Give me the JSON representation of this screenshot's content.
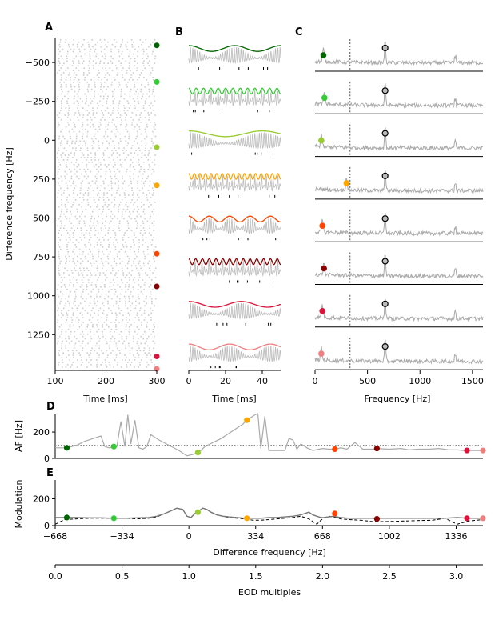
{
  "panel_letters": [
    "A",
    "B",
    "C",
    "D",
    "E"
  ],
  "chart_data": [
    {
      "id": "A",
      "type": "scatter",
      "xlabel": "Time [ms]",
      "ylabel": "Difference frequency [Hz]",
      "xlim": [
        100,
        300
      ],
      "ylim": [
        1480,
        -660
      ],
      "y_inverted": true,
      "xticks": [
        100,
        200,
        300
      ],
      "yticks": [
        -500,
        -250,
        0,
        250,
        500,
        750,
        1000,
        1250
      ],
      "ytick_labels": [
        "−500",
        "−250",
        "0",
        "250",
        "500",
        "750",
        "1000",
        "1250"
      ],
      "raster_color": "#cccccc",
      "markers": [
        {
          "df": -610,
          "color": "#006400"
        },
        {
          "df": -375,
          "color": "#32cd32"
        },
        {
          "df": 45,
          "color": "#9acd32"
        },
        {
          "df": 290,
          "color": "#ffa500"
        },
        {
          "df": 730,
          "color": "#ff4500"
        },
        {
          "df": 940,
          "color": "#8b0000"
        },
        {
          "df": 1390,
          "color": "#dc143c"
        },
        {
          "df": 1470,
          "color": "#f08080"
        }
      ]
    },
    {
      "id": "B",
      "type": "line",
      "xlabel": "Time [ms]",
      "xlim": [
        0,
        50
      ],
      "xticks": [
        0,
        20,
        40
      ],
      "traces": [
        {
          "color": "#006400",
          "beat_hz": 40
        },
        {
          "color": "#32cd32",
          "beat_hz": 250
        },
        {
          "color": "#9acd32",
          "beat_hz": 25
        },
        {
          "color": "#ffa500",
          "beat_hz": 330
        },
        {
          "color": "#ff4500",
          "beat_hz": 90
        },
        {
          "color": "#8b0000",
          "beat_hz": 270
        },
        {
          "color": "#dc143c",
          "beat_hz": 35
        },
        {
          "color": "#f08080",
          "beat_hz": 45
        }
      ]
    },
    {
      "id": "C",
      "type": "line",
      "xlabel": "Frequency [Hz]",
      "xlim": [
        0,
        1600
      ],
      "xticks": [
        0,
        500,
        1000,
        1500
      ],
      "eod_hz": 668,
      "dashed_x": 334,
      "spectra": [
        {
          "color": "#006400",
          "peak_hz": 80
        },
        {
          "color": "#32cd32",
          "peak_hz": 90
        },
        {
          "color": "#9acd32",
          "peak_hz": 60
        },
        {
          "color": "#ffa500",
          "peak_hz": 300
        },
        {
          "color": "#ff4500",
          "peak_hz": 70
        },
        {
          "color": "#8b0000",
          "peak_hz": 85
        },
        {
          "color": "#dc143c",
          "peak_hz": 70
        },
        {
          "color": "#f08080",
          "peak_hz": 60
        }
      ]
    },
    {
      "id": "D",
      "type": "line",
      "ylabel": "AF [Hz]",
      "xlim": [
        -668,
        1470
      ],
      "ylim": [
        0,
        340
      ],
      "yticks": [
        0,
        200
      ],
      "reference_line": 100,
      "x": [
        -668,
        -610,
        -560,
        -520,
        -480,
        -440,
        -420,
        -400,
        -380,
        -360,
        -340,
        -320,
        -305,
        -290,
        -270,
        -250,
        -230,
        -210,
        -190,
        -150,
        -100,
        -50,
        -10,
        20,
        45,
        60,
        80,
        120,
        160,
        200,
        240,
        270,
        290,
        310,
        330,
        345,
        360,
        380,
        400,
        440,
        480,
        500,
        520,
        540,
        560,
        590,
        620,
        650,
        670,
        700,
        730,
        760,
        790,
        830,
        870,
        920,
        940,
        1000,
        1060,
        1100,
        1150,
        1200,
        1250,
        1300,
        1340,
        1370,
        1400,
        1440,
        1470
      ],
      "y": [
        80,
        80,
        100,
        130,
        150,
        170,
        90,
        80,
        85,
        90,
        280,
        90,
        330,
        110,
        290,
        80,
        70,
        90,
        180,
        140,
        100,
        60,
        20,
        30,
        45,
        60,
        90,
        120,
        150,
        190,
        230,
        260,
        290,
        310,
        330,
        340,
        75,
        320,
        60,
        60,
        60,
        150,
        140,
        70,
        110,
        80,
        60,
        70,
        75,
        70,
        70,
        80,
        70,
        120,
        70,
        70,
        75,
        70,
        75,
        65,
        70,
        70,
        75,
        65,
        65,
        60,
        60,
        60,
        60
      ],
      "markers": [
        {
          "x": -610,
          "y": 80,
          "color": "#006400"
        },
        {
          "x": -375,
          "y": 90,
          "color": "#32cd32"
        },
        {
          "x": 45,
          "y": 45,
          "color": "#9acd32"
        },
        {
          "x": 290,
          "y": 290,
          "color": "#ffa500"
        },
        {
          "x": 730,
          "y": 70,
          "color": "#ff4500"
        },
        {
          "x": 940,
          "y": 75,
          "color": "#8b0000"
        },
        {
          "x": 1390,
          "y": 60,
          "color": "#dc143c"
        },
        {
          "x": 1470,
          "y": 60,
          "color": "#f08080"
        }
      ]
    },
    {
      "id": "E",
      "type": "line",
      "ylabel": "Modulation",
      "xlabel": "Difference frequency [Hz]",
      "xlim": [
        -668,
        1470
      ],
      "ylim": [
        0,
        340
      ],
      "yticks": [
        0,
        200
      ],
      "xticks": [
        -668,
        -334,
        0,
        334,
        668,
        1002,
        1336
      ],
      "xtick_labels": [
        "−668",
        "−334",
        "0",
        "334",
        "668",
        "1002",
        "1336"
      ],
      "x": [
        -668,
        -620,
        -560,
        -500,
        -440,
        -380,
        -320,
        -260,
        -200,
        -160,
        -120,
        -90,
        -60,
        -30,
        -10,
        10,
        30,
        50,
        70,
        90,
        110,
        140,
        170,
        200,
        240,
        280,
        320,
        360,
        400,
        440,
        480,
        520,
        560,
        600,
        620,
        640,
        660,
        680,
        700,
        720,
        760,
        800,
        860,
        920,
        980,
        1040,
        1100,
        1160,
        1220,
        1280,
        1340,
        1400,
        1440,
        1470
      ],
      "y": [
        60,
        60,
        60,
        58,
        58,
        55,
        55,
        58,
        60,
        70,
        90,
        110,
        130,
        120,
        70,
        60,
        90,
        110,
        130,
        120,
        100,
        80,
        70,
        65,
        60,
        55,
        55,
        55,
        60,
        60,
        65,
        70,
        80,
        100,
        80,
        70,
        60,
        60,
        65,
        70,
        60,
        55,
        55,
        55,
        55,
        55,
        55,
        55,
        55,
        55,
        60,
        55,
        55,
        55
      ],
      "dashed_y": [
        10,
        45,
        50,
        55,
        55,
        55,
        55,
        50,
        55,
        65,
        90,
        110,
        130,
        120,
        70,
        60,
        90,
        110,
        130,
        120,
        100,
        80,
        70,
        60,
        55,
        50,
        40,
        40,
        45,
        50,
        55,
        60,
        70,
        50,
        30,
        10,
        40,
        60,
        70,
        65,
        50,
        45,
        40,
        30,
        30,
        32,
        35,
        38,
        40,
        55,
        10,
        35,
        40,
        45
      ],
      "markers": [
        {
          "x": -610,
          "y": 60,
          "color": "#006400"
        },
        {
          "x": -375,
          "y": 55,
          "color": "#32cd32"
        },
        {
          "x": 45,
          "y": 100,
          "color": "#9acd32"
        },
        {
          "x": 290,
          "y": 55,
          "color": "#ffa500"
        },
        {
          "x": 730,
          "y": 90,
          "color": "#ff4500"
        },
        {
          "x": 940,
          "y": 50,
          "color": "#8b0000"
        },
        {
          "x": 1390,
          "y": 55,
          "color": "#dc143c"
        },
        {
          "x": 1470,
          "y": 55,
          "color": "#f08080"
        }
      ]
    },
    {
      "id": "EOD",
      "type": "axis",
      "xlabel": "EOD multiples",
      "xlim": [
        0,
        3.2
      ],
      "xticks": [
        0,
        0.5,
        1,
        1.5,
        2,
        2.5,
        3
      ],
      "xtick_labels": [
        "0.0",
        "0.5",
        "1.0",
        "1.5",
        "2.0",
        "2.5",
        "3.0"
      ]
    }
  ]
}
